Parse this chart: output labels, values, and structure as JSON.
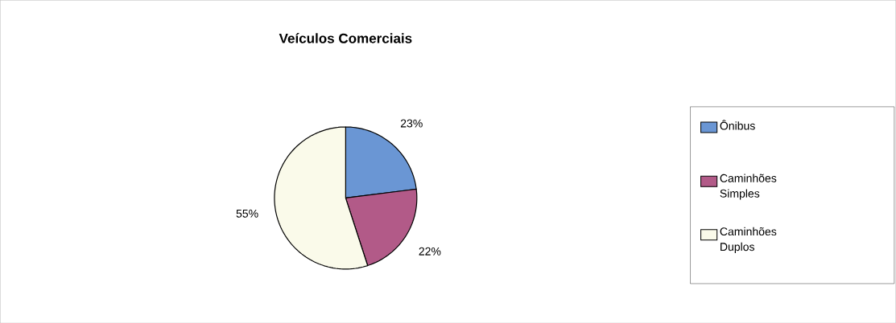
{
  "chart_data": {
    "type": "pie",
    "title": "Veículos Comerciais",
    "categories": [
      "Ônibus",
      "Caminhões Simples",
      "Caminhões Duplos"
    ],
    "values": [
      23,
      22,
      55
    ],
    "colors": [
      "#6a96d4",
      "#b25a88",
      "#fafaea"
    ],
    "value_labels": [
      "23%",
      "22%",
      "55%"
    ],
    "legend": "right"
  }
}
